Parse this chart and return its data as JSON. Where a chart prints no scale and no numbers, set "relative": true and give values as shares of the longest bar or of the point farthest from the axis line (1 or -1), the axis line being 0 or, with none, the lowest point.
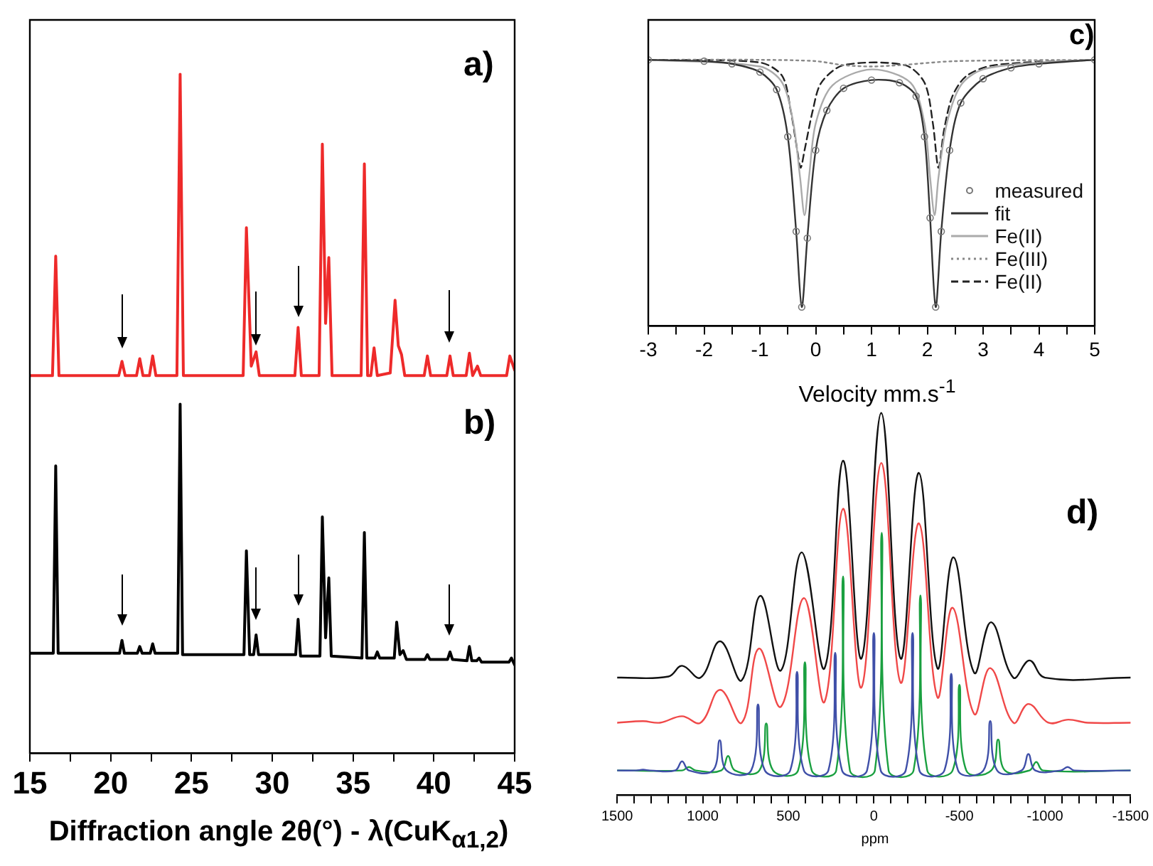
{
  "chart_data": [
    {
      "type": "line",
      "relative": true,
      "xlabel": "Diffraction angle 2θ(°) - λ(CuK$_{α1,2}$)",
      "xlim": [
        15,
        45
      ],
      "xticks": [
        15,
        {
          "value": 17.5,
          "label": null
        },
        20,
        {
          "value": 22.5,
          "label": null
        },
        25,
        {
          "value": 27.5,
          "label": null
        },
        30,
        {
          "value": 32.5,
          "label": null
        },
        35,
        {
          "value": 37.5,
          "label": null
        },
        40,
        {
          "value": 42.5,
          "label": null
        },
        45
      ],
      "grid": false,
      "tick_labels": "x",
      "annotations": [
        "a)",
        "b)"
      ],
      "series": [
        {
          "color": "#ee2a2a",
          "x": [
            15,
            16.4,
            16.6,
            16.8,
            20.5,
            20.7,
            20.9,
            21.6,
            21.8,
            22.0,
            22.4,
            22.6,
            22.8,
            24.1,
            24.3,
            24.5,
            28.2,
            28.4,
            28.7,
            29.0,
            29.2,
            31.4,
            31.6,
            31.8,
            32.9,
            33.1,
            33.3,
            33.5,
            33.7,
            35.5,
            35.7,
            35.9,
            36.1,
            36.3,
            36.5,
            37.3,
            37.6,
            37.8,
            38.0,
            38.2,
            39.4,
            39.6,
            39.8,
            40.8,
            41.0,
            41.2,
            42.0,
            42.2,
            42.4,
            42.7,
            42.9,
            44.5,
            44.7,
            45
          ],
          "values": [
            0.556,
            0.556,
            0.732,
            0.556,
            0.556,
            0.577,
            0.556,
            0.556,
            0.581,
            0.556,
            0.556,
            0.585,
            0.556,
            0.556,
            1.0,
            0.556,
            0.556,
            0.774,
            0.57,
            0.591,
            0.556,
            0.556,
            0.627,
            0.556,
            0.556,
            0.897,
            0.633,
            0.73,
            0.556,
            0.556,
            0.868,
            0.556,
            0.556,
            0.597,
            0.556,
            0.56,
            0.667,
            0.6,
            0.587,
            0.556,
            0.556,
            0.585,
            0.556,
            0.556,
            0.585,
            0.556,
            0.556,
            0.589,
            0.556,
            0.57,
            0.556,
            0.556,
            0.585,
            0.564
          ]
        },
        {
          "color": "#000000",
          "x": [
            15,
            16.45,
            16.6,
            16.75,
            20.55,
            20.7,
            20.85,
            21.65,
            21.8,
            21.95,
            22.45,
            22.6,
            22.75,
            24.15,
            24.3,
            24.45,
            28.25,
            28.4,
            28.6,
            28.85,
            29.0,
            29.15,
            31.45,
            31.6,
            31.75,
            32.95,
            33.1,
            33.3,
            33.5,
            33.65,
            35.55,
            35.7,
            35.85,
            36.35,
            36.5,
            36.65,
            37.55,
            37.7,
            37.9,
            38.1,
            38.3,
            39.45,
            39.6,
            39.75,
            40.85,
            41.0,
            41.15,
            42.05,
            42.2,
            42.35,
            42.65,
            42.8,
            42.95,
            44.65,
            44.8,
            45
          ],
          "values": [
            0.147,
            0.147,
            0.423,
            0.147,
            0.147,
            0.166,
            0.147,
            0.147,
            0.157,
            0.147,
            0.147,
            0.161,
            0.147,
            0.147,
            0.514,
            0.145,
            0.145,
            0.298,
            0.145,
            0.145,
            0.174,
            0.145,
            0.145,
            0.197,
            0.143,
            0.143,
            0.348,
            0.17,
            0.258,
            0.143,
            0.14,
            0.325,
            0.14,
            0.14,
            0.149,
            0.14,
            0.14,
            0.193,
            0.145,
            0.151,
            0.138,
            0.138,
            0.145,
            0.138,
            0.138,
            0.149,
            0.138,
            0.136,
            0.157,
            0.136,
            0.136,
            0.14,
            0.134,
            0.134,
            0.14,
            0.13
          ]
        }
      ]
    },
    {
      "type": "line",
      "relative": true,
      "xlabel": "Velocity mm.s$^{-1}$",
      "xlim": [
        -3,
        5
      ],
      "xticks": [
        -3,
        {
          "value": -2.5,
          "label": null
        },
        -2,
        {
          "value": -1.5,
          "label": null
        },
        -1,
        {
          "value": -0.5,
          "label": null
        },
        0,
        {
          "value": 0.5,
          "label": null
        },
        1,
        {
          "value": 1.5,
          "label": null
        },
        2,
        {
          "value": 2.5,
          "label": null
        },
        3,
        {
          "value": 3.5,
          "label": null
        },
        4,
        {
          "value": 4.5,
          "label": null
        },
        5
      ],
      "grid": false,
      "tick_labels": "x",
      "legend": "bottom right",
      "annotations": [
        "c)"
      ],
      "series": [
        {
          "name": "measured",
          "type": "scatter",
          "marker": "circle",
          "color": "#777777",
          "x": [
            -3,
            -2,
            -1.5,
            -1,
            -0.7,
            -0.5,
            -0.35,
            -0.25,
            -0.15,
            0,
            0.2,
            0.5,
            1,
            1.5,
            1.8,
            1.95,
            2.05,
            2.15,
            2.25,
            2.4,
            2.6,
            3,
            3.5,
            4,
            5
          ],
          "values": [
            1,
            0.995,
            0.985,
            0.954,
            0.888,
            0.711,
            0.355,
            0.071,
            0.33,
            0.66,
            0.81,
            0.893,
            0.924,
            0.914,
            0.863,
            0.711,
            0.406,
            0.071,
            0.355,
            0.66,
            0.838,
            0.929,
            0.97,
            0.985,
            1
          ]
        },
        {
          "name": "fit",
          "marker": "none",
          "line_style": "solid",
          "color": "#333333",
          "x": [
            -3,
            -2,
            -1.5,
            -1,
            -0.7,
            -0.5,
            -0.35,
            -0.25,
            -0.15,
            0,
            0.2,
            0.5,
            1,
            1.5,
            1.8,
            1.95,
            2.05,
            2.15,
            2.25,
            2.4,
            2.6,
            3,
            3.5,
            4,
            5
          ],
          "values": [
            1,
            0.995,
            0.985,
            0.954,
            0.888,
            0.711,
            0.355,
            0.071,
            0.33,
            0.66,
            0.81,
            0.893,
            0.924,
            0.914,
            0.863,
            0.711,
            0.406,
            0.071,
            0.355,
            0.66,
            0.838,
            0.929,
            0.97,
            0.985,
            1
          ]
        },
        {
          "name": "Fe(II)",
          "marker": "none",
          "line_style": "solid",
          "color": "#aaaaaa",
          "x": [
            -3,
            -1,
            -0.6,
            -0.4,
            -0.28,
            -0.2,
            -0.12,
            0,
            0.3,
            1,
            1.7,
            1.95,
            2.05,
            2.13,
            2.2,
            2.35,
            2.6,
            3,
            4,
            5
          ],
          "values": [
            1,
            0.975,
            0.914,
            0.761,
            0.558,
            0.416,
            0.558,
            0.761,
            0.904,
            0.964,
            0.914,
            0.761,
            0.558,
            0.416,
            0.558,
            0.761,
            0.904,
            0.964,
            0.99,
            1
          ]
        },
        {
          "name": "Fe(III)",
          "marker": "none",
          "line_style": "dotted",
          "color": "#888888",
          "x": [
            -3,
            -1,
            0,
            0.5,
            1,
            1.5,
            2.5,
            5
          ],
          "values": [
            1,
            1,
            0.995,
            0.98,
            0.975,
            0.98,
            0.995,
            1
          ]
        },
        {
          "name": "Fe(II)",
          "marker": "none",
          "line_style": "dashed",
          "color": "#222222",
          "x": [
            -3,
            -1,
            -0.6,
            -0.45,
            -0.33,
            -0.27,
            -0.2,
            -0.05,
            0.1,
            0.5,
            1.6,
            1.95,
            2.1,
            2.2,
            2.3,
            2.45,
            2.7,
            3.2,
            5
          ],
          "values": [
            1,
            0.99,
            0.939,
            0.812,
            0.66,
            0.594,
            0.66,
            0.812,
            0.914,
            0.98,
            0.98,
            0.914,
            0.761,
            0.594,
            0.736,
            0.863,
            0.939,
            0.98,
            1
          ]
        }
      ]
    },
    {
      "type": "line",
      "relative": true,
      "xlabel": "ppm",
      "xlim": [
        1500,
        -1500
      ],
      "xticks": [
        1500,
        {
          "value": 1400,
          "label": null
        },
        {
          "value": 1300,
          "label": null
        },
        {
          "value": 1200,
          "label": null
        },
        {
          "value": 1100,
          "label": null
        },
        1000,
        {
          "value": 900,
          "label": null
        },
        {
          "value": 800,
          "label": null
        },
        {
          "value": 700,
          "label": null
        },
        {
          "value": 600,
          "label": null
        },
        500,
        {
          "value": 400,
          "label": null
        },
        {
          "value": 300,
          "label": null
        },
        {
          "value": 200,
          "label": null
        },
        {
          "value": 100,
          "label": null
        },
        0,
        {
          "value": -100,
          "label": null
        },
        {
          "value": -200,
          "label": null
        },
        {
          "value": -300,
          "label": null
        },
        {
          "value": -400,
          "label": null
        },
        -500,
        {
          "value": -600,
          "label": null
        },
        {
          "value": -700,
          "label": null
        },
        {
          "value": -800,
          "label": null
        },
        {
          "value": -900,
          "label": null
        },
        -1000,
        {
          "value": -1100,
          "label": null
        },
        {
          "value": -1200,
          "label": null
        },
        {
          "value": -1300,
          "label": null
        },
        {
          "value": -1400,
          "label": null
        },
        -1500
      ],
      "grid": false,
      "tick_labels": "x",
      "annotations": [
        "d)"
      ],
      "series": [
        {
          "color": "#111111",
          "x": [
            1500,
            1200,
            1121,
            1013,
            898,
            772,
            664,
            543,
            422,
            288,
            180,
            73,
            -43,
            -156,
            -263,
            -371,
            -465,
            -586,
            -685,
            -815,
            -909,
            -1000,
            -1500
          ],
          "values": [
            0.307,
            0.31,
            0.338,
            0.307,
            0.402,
            0.3,
            0.521,
            0.326,
            0.635,
            0.332,
            0.875,
            0.357,
            1.0,
            0.357,
            0.843,
            0.332,
            0.622,
            0.32,
            0.452,
            0.307,
            0.352,
            0.307,
            0.307
          ]
        },
        {
          "color": "#f04848",
          "x": [
            1500,
            1349,
            1250,
            1121,
            1013,
            898,
            772,
            672,
            543,
            409,
            288,
            180,
            73,
            -43,
            -156,
            -263,
            -371,
            -460,
            -586,
            -680,
            -815,
            -903,
            -1020,
            -1137,
            -1250,
            -1500
          ],
          "values": [
            0.189,
            0.193,
            0.189,
            0.206,
            0.189,
            0.275,
            0.189,
            0.383,
            0.231,
            0.515,
            0.244,
            0.749,
            0.281,
            0.869,
            0.294,
            0.711,
            0.256,
            0.49,
            0.212,
            0.332,
            0.189,
            0.238,
            0.189,
            0.197,
            0.189,
            0.189
          ]
        },
        {
          "color": "#3f4fa8",
          "x": [
            1500,
            1389,
            1349,
            1309,
            1161,
            1121,
            1081,
            941,
            901,
            861,
            717,
            677,
            637,
            489,
            449,
            409,
            266,
            226,
            186,
            40,
            0,
            -40,
            -186,
            -226,
            -266,
            -412,
            -452,
            -492,
            -640,
            -680,
            -720,
            -863,
            -903,
            -943,
            -1092,
            -1132,
            -1172,
            -1500
          ],
          "values": [
            0.064,
            0.064,
            0.066,
            0.064,
            0.064,
            0.088,
            0.064,
            0.064,
            0.143,
            0.064,
            0.064,
            0.237,
            0.064,
            0.064,
            0.322,
            0.064,
            0.064,
            0.372,
            0.064,
            0.064,
            0.424,
            0.064,
            0.064,
            0.424,
            0.064,
            0.064,
            0.317,
            0.064,
            0.064,
            0.193,
            0.064,
            0.064,
            0.107,
            0.064,
            0.064,
            0.073,
            0.064,
            0.064
          ]
        },
        {
          "color": "#1aa040",
          "x": [
            1500,
            1121,
            1081,
            1041,
            892,
            852,
            812,
            669,
            629,
            589,
            443,
            403,
            363,
            220,
            180,
            140,
            -6,
            -46,
            -86,
            -232,
            -272,
            -312,
            -460,
            -500,
            -540,
            -686,
            -726,
            -766,
            -909,
            -949,
            -989,
            -1500
          ],
          "values": [
            0.064,
            0.064,
            0.073,
            0.064,
            0.064,
            0.102,
            0.064,
            0.064,
            0.187,
            0.064,
            0.064,
            0.347,
            0.064,
            0.064,
            0.572,
            0.064,
            0.064,
            0.686,
            0.064,
            0.064,
            0.522,
            0.064,
            0.064,
            0.288,
            0.064,
            0.064,
            0.145,
            0.064,
            0.064,
            0.086,
            0.064,
            0.064
          ]
        }
      ]
    }
  ]
}
